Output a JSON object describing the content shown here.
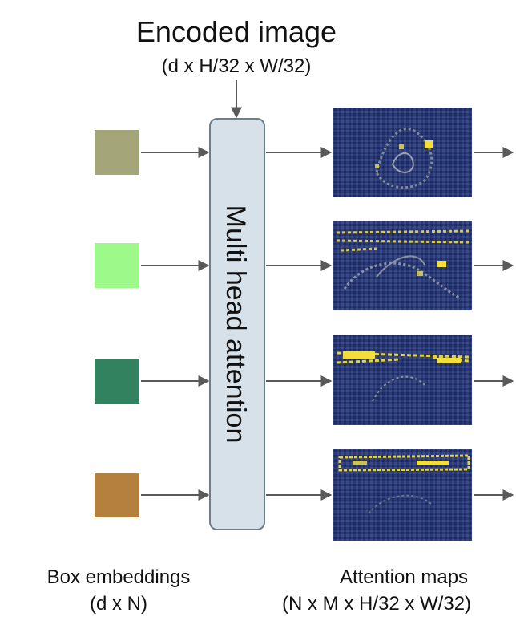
{
  "title": "Encoded image",
  "title_dims": "(d x H/32 x W/32)",
  "attention_block_label": "Multi head attention",
  "box_embeddings": {
    "label": "Box embeddings",
    "dims": "(d x N)",
    "colors": [
      "#a4a67a",
      "#9dfa8a",
      "#32815f",
      "#b57f3e"
    ]
  },
  "attention_maps": {
    "label": "Attention maps",
    "dims": "(N x M x H/32 x W/32)",
    "base_color": "#2b3a74",
    "highlight_color": "#f2df3a"
  },
  "colors": {
    "block_fill": "#d6e1e9",
    "block_stroke": "#6f7d86",
    "arrow": "#5a5a5a"
  },
  "icons": {
    "arrow": "arrow-right-icon",
    "arrow_down": "arrow-down-icon"
  }
}
